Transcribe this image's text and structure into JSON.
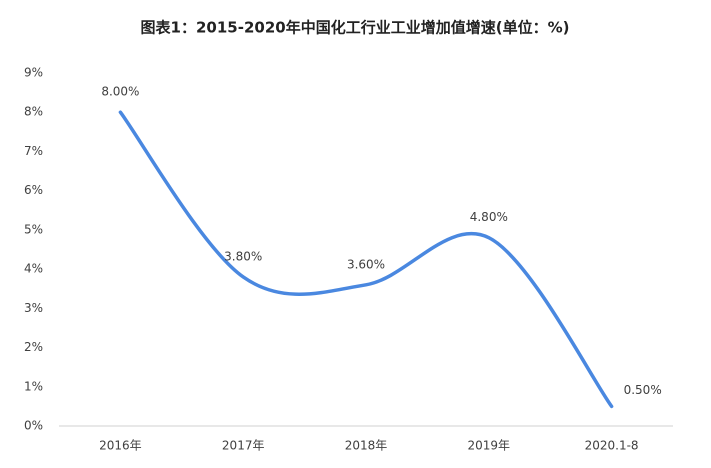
{
  "chart_data": {
    "type": "line",
    "title": "图表1：2015-2020年中国化工行业工业增加值增速(单位：%)",
    "categories": [
      "2016年",
      "2017年",
      "2018年",
      "2019年",
      "2020.1-8"
    ],
    "series": [
      {
        "name": "工业增加值增速",
        "color": "#4a88e0",
        "values": [
          8.0,
          3.8,
          3.6,
          4.8,
          0.5
        ],
        "value_labels": [
          "8.00%",
          "3.80%",
          "3.60%",
          "4.80%",
          "0.50%"
        ]
      }
    ],
    "ylim": [
      0,
      9
    ],
    "yticks": [
      {
        "value": 0,
        "label": "0%"
      },
      {
        "value": 1,
        "label": "1%"
      },
      {
        "value": 2,
        "label": "2%"
      },
      {
        "value": 3,
        "label": "3%"
      },
      {
        "value": 4,
        "label": "4%"
      },
      {
        "value": 5,
        "label": "5%"
      },
      {
        "value": 6,
        "label": "6%"
      },
      {
        "value": 7,
        "label": "7%"
      },
      {
        "value": 8,
        "label": "8%"
      },
      {
        "value": 9,
        "label": "9%"
      }
    ],
    "grid": false,
    "smooth": true
  }
}
